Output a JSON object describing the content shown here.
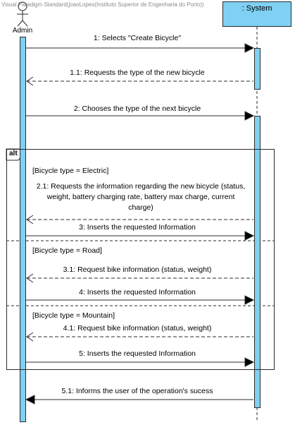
{
  "watermark": "Visual Paradigm Standard(joaoLopes(Instituto Superior de Engenharia do Porto))",
  "actors": {
    "admin": {
      "label": "Admin"
    },
    "system": {
      "label": ": System"
    }
  },
  "fragment": {
    "operator": "alt",
    "guards": [
      "[Bicycle type = Electric]",
      "[Bicycle type = Road]",
      "[Bicycle type = Mountain]"
    ]
  },
  "messages": [
    {
      "label": "1: Selects \"Create Bicycle\"",
      "kind": "sync"
    },
    {
      "label": "1.1: Requests the type of the new bicycle",
      "kind": "reply"
    },
    {
      "label": "2: Chooses the type of the next bicycle",
      "kind": "sync"
    },
    {
      "label": "2.1: Requests the information regarding the new bicycle (status, weight, battery charging rate, battery max charge, current charge)",
      "kind": "reply"
    },
    {
      "label": "3: Inserts the requested Information",
      "kind": "sync"
    },
    {
      "label": "3.1: Request bike information (status, weight)",
      "kind": "reply"
    },
    {
      "label": "4: Inserts the requested Information",
      "kind": "sync"
    },
    {
      "label": "4.1: Request bike information (status, weight)",
      "kind": "reply"
    },
    {
      "label": "5: Inserts the requested Information",
      "kind": "sync"
    },
    {
      "label": "5.1: Informs the user of the operation's sucess",
      "kind": "sync"
    }
  ]
}
